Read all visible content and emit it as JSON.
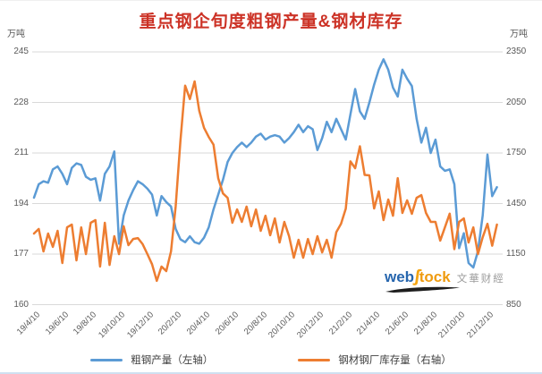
{
  "title": "重点钢企旬度粗钢产量&钢材库存",
  "title_color": "#cc3226",
  "left_axis": {
    "unit": "万吨",
    "ticks": [
      245,
      228,
      211,
      194,
      177,
      160
    ],
    "min": 160,
    "max": 245
  },
  "right_axis": {
    "unit": "万吨",
    "ticks": [
      2350,
      2050,
      1750,
      1450,
      1150,
      850
    ],
    "min": 850,
    "max": 2350
  },
  "legend": [
    {
      "label": "粗钢产量（左轴）",
      "color": "#5b9bd5"
    },
    {
      "label": "钢材钢厂库存量（右轴）",
      "color": "#ed7d31"
    }
  ],
  "watermark": {
    "web": "web",
    "tock": "tock",
    "cn": "文華财經"
  },
  "colors": {
    "grid": "#d9d9d9",
    "blue": "#5b9bd5",
    "orange": "#ed7d31",
    "tick_text": "#595959"
  },
  "chart_data": {
    "type": "line",
    "title": "重点钢企旬度粗钢产量&钢材库存",
    "x_tick_labels": [
      "19/4/10",
      "19/6/10",
      "19/8/10",
      "19/10/10",
      "19/12/10",
      "20/2/10",
      "20/4/10",
      "20/6/10",
      "20/8/10",
      "20/10/10",
      "20/12/10",
      "21/2/10",
      "21/4/10",
      "21/6/10",
      "21/8/10",
      "21/10/10",
      "21/12/10"
    ],
    "x_points_per_tick_interval": 6,
    "left_ylim": [
      160,
      245
    ],
    "right_ylim": [
      850,
      2350
    ],
    "grid": true,
    "legend_position": "bottom",
    "series": [
      {
        "name": "粗钢产量（左轴）",
        "axis": "left",
        "color": "#5b9bd5",
        "values": [
          196,
          200.5,
          201.5,
          201,
          205.5,
          206.5,
          204,
          200.5,
          206,
          207.5,
          207,
          203,
          202,
          202.5,
          195,
          204,
          206.5,
          211.5,
          180.5,
          190,
          195,
          198.5,
          201.5,
          200.5,
          199,
          197,
          190,
          196.5,
          194.5,
          193,
          185.5,
          182,
          181,
          183,
          181,
          180.5,
          182.5,
          186,
          192,
          197,
          202,
          208,
          211,
          213,
          214.5,
          213,
          214.5,
          216.5,
          217.5,
          215.5,
          216.5,
          217,
          216.5,
          214.5,
          216,
          218,
          220.5,
          218,
          220,
          219,
          212,
          216,
          221.5,
          218,
          222.5,
          219,
          215.5,
          224,
          232.5,
          225,
          222.5,
          228,
          234,
          239,
          242.5,
          239,
          233,
          230,
          239,
          236,
          233.5,
          222.5,
          214.5,
          219.5,
          211,
          215.5,
          206.5,
          205,
          205.5,
          200.5,
          179,
          184,
          174,
          172.5,
          178,
          190,
          210.5,
          196.5,
          199.5
        ]
      },
      {
        "name": "钢材钢厂库存量（右轴）",
        "axis": "right",
        "color": "#ed7d31",
        "values": [
          1272,
          1299,
          1166,
          1272,
          1193,
          1288,
          1097,
          1309,
          1325,
          1113,
          1309,
          1150,
          1336,
          1352,
          1076,
          1336,
          1086,
          1256,
          1150,
          1315,
          1203,
          1240,
          1245,
          1209,
          1150,
          1090,
          991,
          1076,
          1049,
          1166,
          1432,
          1820,
          2150,
          2070,
          2175,
          2000,
          1900,
          1845,
          1800,
          1600,
          1510,
          1484,
          1336,
          1415,
          1341,
          1432,
          1315,
          1415,
          1288,
          1378,
          1262,
          1362,
          1219,
          1341,
          1256,
          1129,
          1235,
          1129,
          1240,
          1150,
          1256,
          1160,
          1235,
          1129,
          1280,
          1330,
          1420,
          1700,
          1660,
          1790,
          1620,
          1617,
          1421,
          1522,
          1352,
          1474,
          1378,
          1601,
          1394,
          1469,
          1389,
          1484,
          1500,
          1394,
          1341,
          1341,
          1230,
          1310,
          1390,
          1180,
          1341,
          1362,
          1219,
          1309,
          1150,
          1250,
          1330,
          1200,
          1325
        ]
      }
    ]
  }
}
